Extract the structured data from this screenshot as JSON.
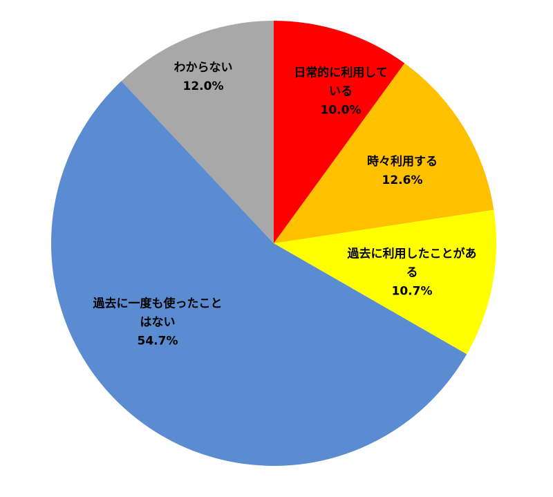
{
  "chart_data": {
    "type": "pie",
    "title": "",
    "legend": "none",
    "background": "#FFFFFF",
    "label_text_color": "#000000",
    "start_angle_deg": -90,
    "direction": "clockwise",
    "total": 100.0,
    "slices": [
      {
        "label": "日常的に利用している",
        "label_lines": [
          "日常的に利用して",
          "いる"
        ],
        "value": 10.0,
        "pct_text": "10.0%",
        "color": "#FF0000"
      },
      {
        "label": "時々利用する",
        "label_lines": [
          "時々利用する"
        ],
        "value": 12.6,
        "pct_text": "12.6%",
        "color": "#FFC000"
      },
      {
        "label": "過去に利用したことがある",
        "label_lines": [
          "過去に利用したことがあ",
          "る"
        ],
        "value": 10.7,
        "pct_text": "10.7%",
        "color": "#FFFF00"
      },
      {
        "label": "過去に一度も使ったことはない",
        "label_lines": [
          "過去に一度も使ったこと",
          "はない"
        ],
        "value": 54.7,
        "pct_text": "54.7%",
        "color": "#5B8BD1"
      },
      {
        "label": "わからない",
        "label_lines": [
          "わからない"
        ],
        "value": 12.0,
        "pct_text": "12.0%",
        "color": "#A8A8A8"
      }
    ]
  }
}
